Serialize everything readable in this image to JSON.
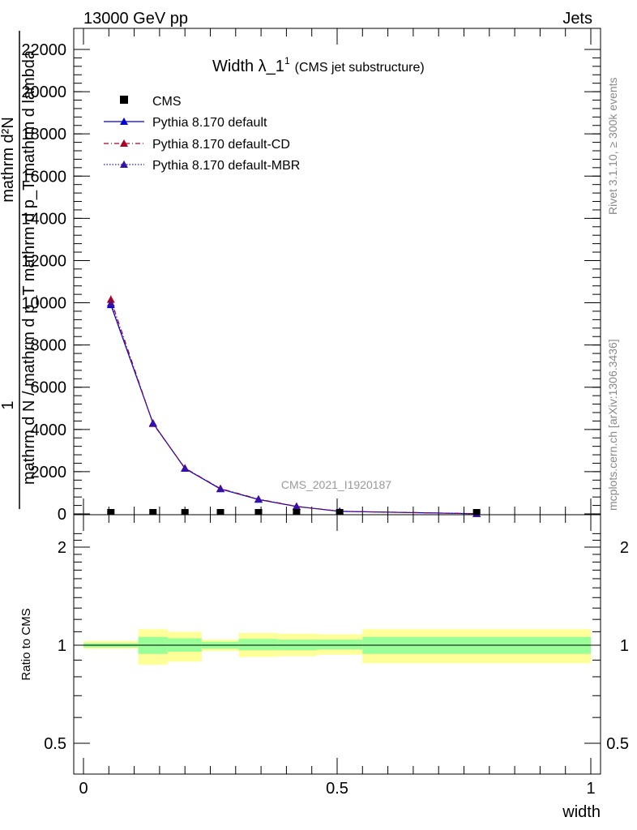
{
  "header": {
    "left": "13000 GeV pp",
    "right": "Jets"
  },
  "side_labels": {
    "rivet": "Rivet 3.1.10, ≥ 300k events",
    "mcplots": "mcplots.cern.ch [arXiv:1306.3436]"
  },
  "watermark": "CMS_2021_I1920187",
  "ylabel_main": {
    "one": "1",
    "numerator": "mathrm d²N",
    "denominator": "mathrm d N / mathrm d p_T mathrm d p_T mathrm d lambda"
  },
  "ylabel_ratio": "Ratio to CMS",
  "colors": {
    "cms": "#000000",
    "default": "#0000cc",
    "cd": "#aa0022",
    "mbr": "#3311aa",
    "band_inner": "#99ff99",
    "band_outer": "#ffff99"
  },
  "chart_data": [
    {
      "type": "line",
      "title": "Width λ_1¹ (CMS jet substructure)",
      "title_main": "Width λ_1",
      "title_sup": "1",
      "title_sub": "(CMS jet substructure)",
      "xlim": [
        0,
        1
      ],
      "ylim": [
        0,
        22000
      ],
      "y_ticks": [
        0,
        2000,
        4000,
        6000,
        8000,
        10000,
        12000,
        14000,
        16000,
        18000,
        20000,
        22000
      ],
      "y_tick_labels": [
        "0",
        "2000",
        "4000",
        "6000",
        "8000",
        "10000",
        "12000",
        "14000",
        "16000",
        "18000",
        "20000",
        "22000"
      ],
      "legend_position": "top-left",
      "x": [
        0.054,
        0.137,
        0.2,
        0.27,
        0.345,
        0.42,
        0.505,
        0.775
      ],
      "series": [
        {
          "name": "CMS",
          "style": "square",
          "values": [
            0,
            0,
            0,
            0,
            0,
            0,
            0,
            0
          ]
        },
        {
          "name": "Pythia 8.170 default",
          "style": "solid",
          "values": [
            9900,
            4300,
            2150,
            1180,
            680,
            350,
            120,
            8
          ]
        },
        {
          "name": "Pythia 8.170 default-CD",
          "style": "dashdot",
          "values": [
            10150,
            4270,
            2170,
            1200,
            700,
            355,
            125,
            9
          ]
        },
        {
          "name": "Pythia 8.170 default-MBR",
          "style": "dotted",
          "values": [
            9980,
            4290,
            2160,
            1190,
            690,
            352,
            122,
            8
          ]
        }
      ]
    },
    {
      "type": "area",
      "xlabel": "width",
      "ylabel": "Ratio to CMS",
      "xlim": [
        0,
        1
      ],
      "ylim": [
        0.4,
        2.3
      ],
      "y_ticks": [
        0.5,
        1,
        2
      ],
      "y_tick_labels": [
        "0.5",
        "1",
        "2"
      ],
      "x_ticks": [
        0,
        0.5,
        1
      ],
      "x_tick_labels": [
        "0",
        "0.5",
        "1"
      ],
      "bins": [
        {
          "x0": 0.0,
          "x1": 0.108,
          "inner": [
            0.985,
            1.015
          ],
          "outer": [
            0.975,
            1.03
          ]
        },
        {
          "x0": 0.108,
          "x1": 0.166,
          "inner": [
            0.94,
            1.06
          ],
          "outer": [
            0.87,
            1.12
          ]
        },
        {
          "x0": 0.166,
          "x1": 0.233,
          "inner": [
            0.955,
            1.05
          ],
          "outer": [
            0.89,
            1.1
          ]
        },
        {
          "x0": 0.233,
          "x1": 0.306,
          "inner": [
            0.975,
            1.025
          ],
          "outer": [
            0.96,
            1.04
          ]
        },
        {
          "x0": 0.306,
          "x1": 0.383,
          "inner": [
            0.965,
            1.045
          ],
          "outer": [
            0.92,
            1.09
          ]
        },
        {
          "x0": 0.383,
          "x1": 0.46,
          "inner": [
            0.965,
            1.04
          ],
          "outer": [
            0.925,
            1.085
          ]
        },
        {
          "x0": 0.46,
          "x1": 0.55,
          "inner": [
            0.97,
            1.04
          ],
          "outer": [
            0.935,
            1.08
          ]
        },
        {
          "x0": 0.55,
          "x1": 1.0,
          "inner": [
            0.94,
            1.06
          ],
          "outer": [
            0.88,
            1.12
          ]
        }
      ]
    }
  ]
}
